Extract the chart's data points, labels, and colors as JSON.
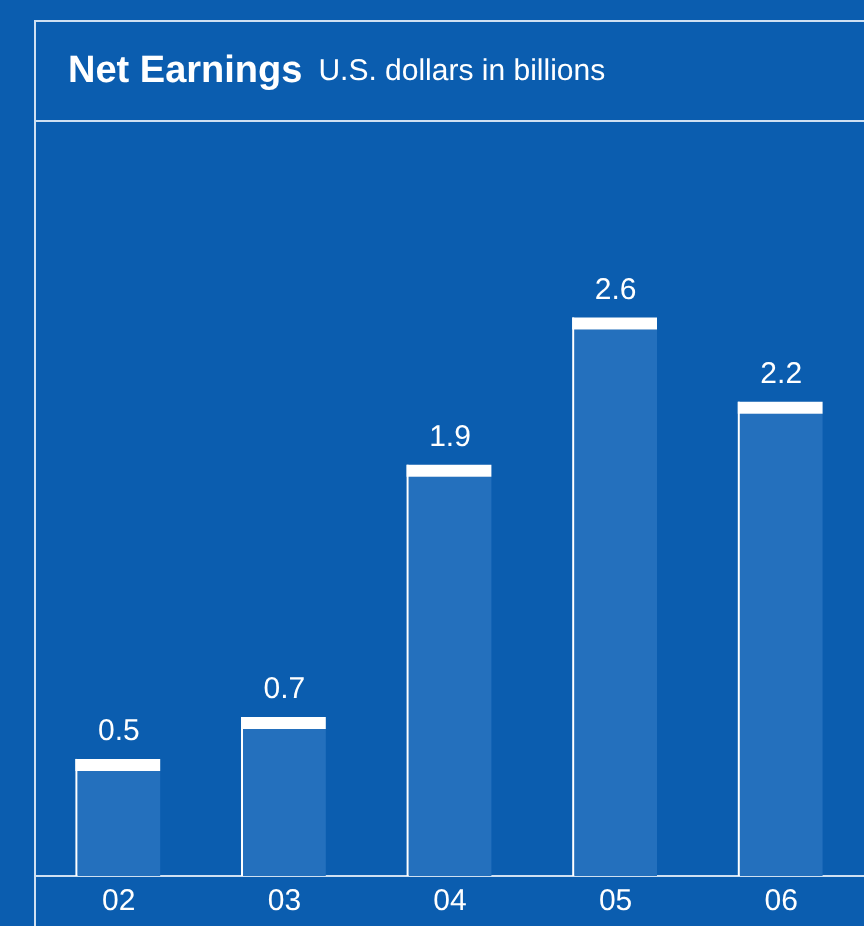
{
  "chart_data": {
    "type": "bar",
    "title": "Net Earnings",
    "subtitle": "U.S. dollars in billions",
    "categories": [
      "02",
      "03",
      "04",
      "05",
      "06"
    ],
    "values": [
      0.5,
      0.7,
      1.9,
      2.6,
      2.2
    ],
    "color": "#2470bd",
    "data_labels": true,
    "grid": false,
    "legend": false
  }
}
